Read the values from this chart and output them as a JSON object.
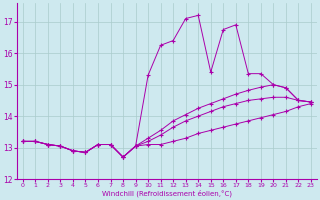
{
  "background_color": "#cee9ef",
  "line_color": "#aa00aa",
  "grid_color": "#aacccc",
  "xlim": [
    -0.5,
    23.5
  ],
  "ylim": [
    12,
    17.6
  ],
  "xticks": [
    0,
    1,
    2,
    3,
    4,
    5,
    6,
    7,
    8,
    9,
    10,
    11,
    12,
    13,
    14,
    15,
    16,
    17,
    18,
    19,
    20,
    21,
    22,
    23
  ],
  "yticks": [
    12,
    13,
    14,
    15,
    16,
    17
  ],
  "xlabel": "Windchill (Refroidissement éolien,°C)",
  "series": [
    {
      "x": [
        0,
        1,
        2,
        3,
        4,
        5,
        6,
        7,
        8,
        9,
        10,
        11,
        12,
        13,
        14,
        15,
        16,
        17,
        18,
        19,
        20,
        21,
        22,
        23
      ],
      "y": [
        13.2,
        13.2,
        13.1,
        13.05,
        12.9,
        12.85,
        13.1,
        13.1,
        12.7,
        13.05,
        13.1,
        13.1,
        13.2,
        13.3,
        13.45,
        13.55,
        13.65,
        13.75,
        13.85,
        13.95,
        14.05,
        14.15,
        14.3,
        14.4
      ]
    },
    {
      "x": [
        0,
        1,
        2,
        3,
        4,
        5,
        6,
        7,
        8,
        9,
        10,
        11,
        12,
        13,
        14,
        15,
        16,
        17,
        18,
        19,
        20,
        21,
        22,
        23
      ],
      "y": [
        13.2,
        13.2,
        13.1,
        13.05,
        12.9,
        12.85,
        13.1,
        13.1,
        12.7,
        13.05,
        13.2,
        13.4,
        13.65,
        13.85,
        14.0,
        14.15,
        14.3,
        14.4,
        14.5,
        14.55,
        14.6,
        14.6,
        14.5,
        14.45
      ]
    },
    {
      "x": [
        0,
        1,
        2,
        3,
        4,
        5,
        6,
        7,
        8,
        9,
        10,
        11,
        12,
        13,
        14,
        15,
        16,
        17,
        18,
        19,
        20,
        21,
        22,
        23
      ],
      "y": [
        13.2,
        13.2,
        13.1,
        13.05,
        12.9,
        12.85,
        13.1,
        13.1,
        12.7,
        13.05,
        15.3,
        16.25,
        16.4,
        17.1,
        17.2,
        15.4,
        16.75,
        16.9,
        15.35,
        15.35,
        15.0,
        14.9,
        14.5,
        14.45
      ]
    },
    {
      "x": [
        0,
        1,
        2,
        3,
        4,
        5,
        6,
        7,
        8,
        9,
        10,
        11,
        12,
        13,
        14,
        15,
        16,
        17,
        18,
        19,
        20,
        21,
        22,
        23
      ],
      "y": [
        13.2,
        13.2,
        13.1,
        13.05,
        12.9,
        12.85,
        13.1,
        13.1,
        12.7,
        13.05,
        13.3,
        13.55,
        13.85,
        14.05,
        14.25,
        14.4,
        14.55,
        14.7,
        14.82,
        14.92,
        15.0,
        14.9,
        14.5,
        14.45
      ]
    }
  ]
}
